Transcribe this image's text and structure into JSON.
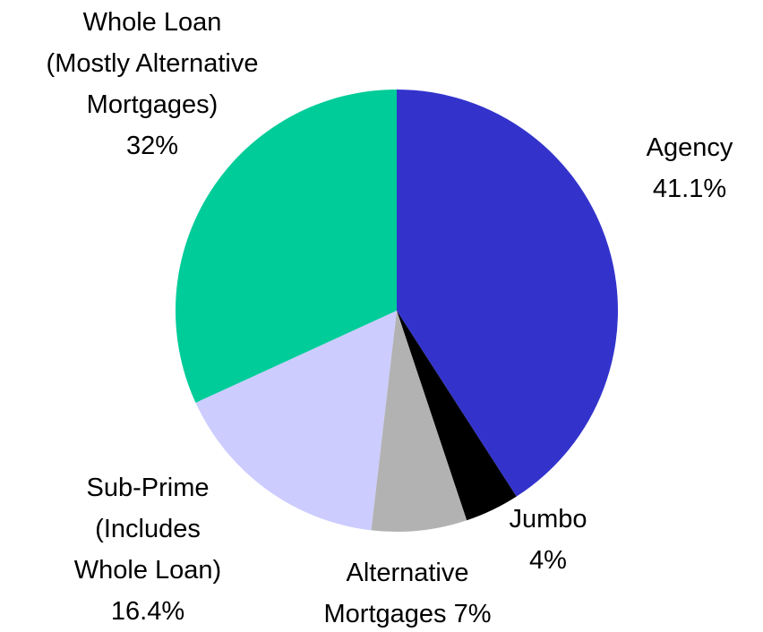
{
  "chart_data": {
    "type": "pie",
    "categories": [
      "Agency",
      "Jumbo",
      "Alternative\nMortgages",
      "Sub-Prime\n(Includes\nWhole Loan)",
      "Whole Loan\n(Mostly Alternative\nMortgages)"
    ],
    "values": [
      41.1,
      4,
      7,
      16.4,
      32
    ],
    "value_labels": [
      "41.1%",
      "4%",
      "7%",
      "16.4%",
      "32%"
    ],
    "colors": [
      "#3333cc",
      "#000000",
      "#b2b2b2",
      "#ccccff",
      "#00cc99"
    ]
  }
}
